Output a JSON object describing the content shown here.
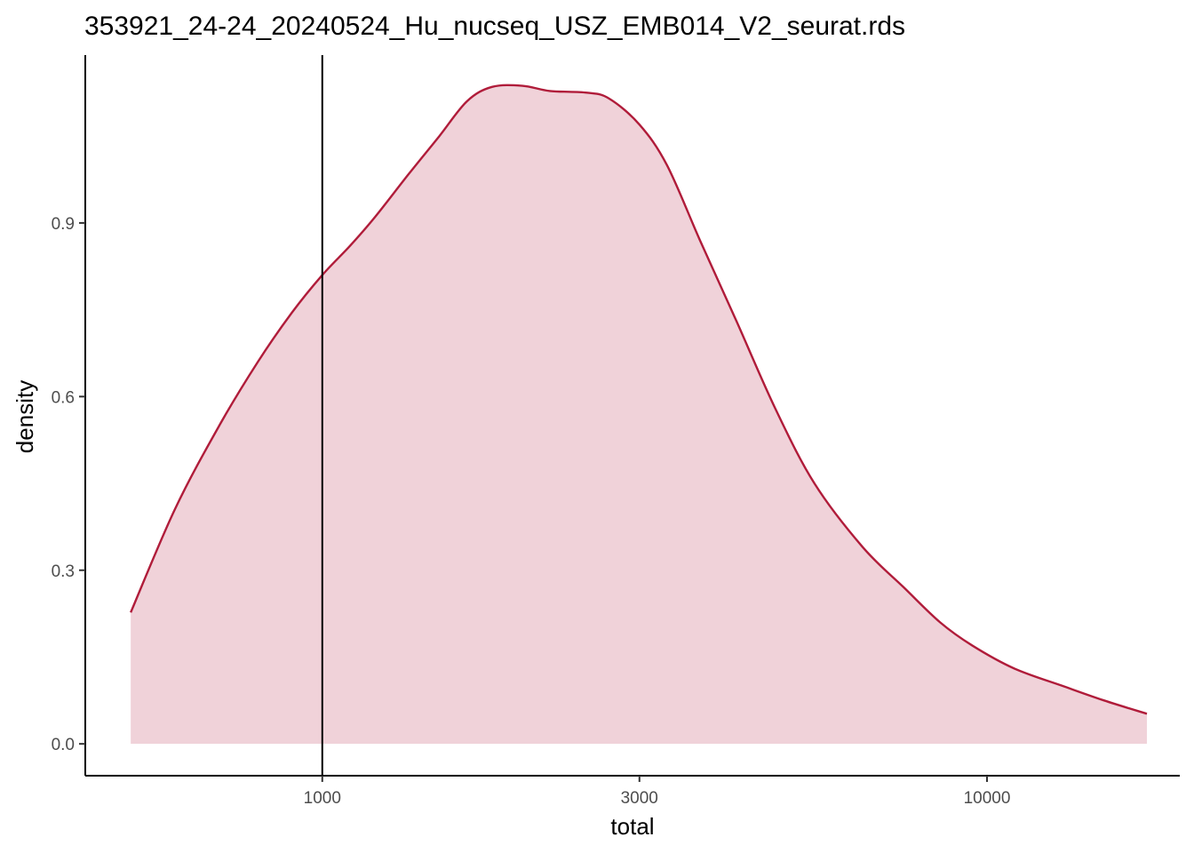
{
  "chart_data": {
    "type": "area",
    "title": "353921_24-24_20240524_Hu_nucseq_USZ_EMB014_V2_seurat.rds",
    "xlabel": "total",
    "ylabel": "density",
    "x_scale": "log10",
    "xlim": [
      440,
      19500
    ],
    "ylim": [
      -0.055,
      1.19
    ],
    "x_ticks": [
      {
        "value": 1000,
        "label": "1000"
      },
      {
        "value": 3000,
        "label": "3000"
      },
      {
        "value": 10000,
        "label": "10000"
      }
    ],
    "y_ticks": [
      {
        "value": 0.0,
        "label": "0.0"
      },
      {
        "value": 0.3,
        "label": "0.3"
      },
      {
        "value": 0.6,
        "label": "0.6"
      },
      {
        "value": 0.9,
        "label": "0.9"
      }
    ],
    "vline": 1000,
    "grid": false,
    "legend": "none",
    "series": [
      {
        "color": "#b01c3a",
        "fill": "#f0d2d9",
        "points": [
          {
            "x": 515,
            "y": 0.227
          },
          {
            "x": 600,
            "y": 0.405
          },
          {
            "x": 700,
            "y": 0.55
          },
          {
            "x": 800,
            "y": 0.66
          },
          {
            "x": 900,
            "y": 0.745
          },
          {
            "x": 1000,
            "y": 0.81
          },
          {
            "x": 1100,
            "y": 0.86
          },
          {
            "x": 1200,
            "y": 0.91
          },
          {
            "x": 1350,
            "y": 0.985
          },
          {
            "x": 1500,
            "y": 1.05
          },
          {
            "x": 1650,
            "y": 1.11
          },
          {
            "x": 1800,
            "y": 1.135
          },
          {
            "x": 2000,
            "y": 1.137
          },
          {
            "x": 2200,
            "y": 1.128
          },
          {
            "x": 2500,
            "y": 1.125
          },
          {
            "x": 2700,
            "y": 1.115
          },
          {
            "x": 3000,
            "y": 1.07
          },
          {
            "x": 3300,
            "y": 1.0
          },
          {
            "x": 3700,
            "y": 0.87
          },
          {
            "x": 4200,
            "y": 0.73
          },
          {
            "x": 4800,
            "y": 0.58
          },
          {
            "x": 5500,
            "y": 0.45
          },
          {
            "x": 6500,
            "y": 0.34
          },
          {
            "x": 7500,
            "y": 0.27
          },
          {
            "x": 8500,
            "y": 0.21
          },
          {
            "x": 9500,
            "y": 0.17
          },
          {
            "x": 11000,
            "y": 0.13
          },
          {
            "x": 13000,
            "y": 0.1
          },
          {
            "x": 15000,
            "y": 0.075
          },
          {
            "x": 17400,
            "y": 0.052
          }
        ]
      }
    ]
  }
}
